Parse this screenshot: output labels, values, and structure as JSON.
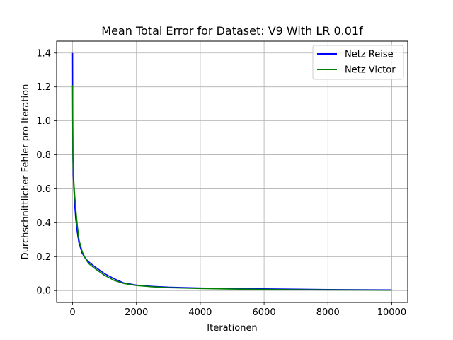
{
  "chart_data": {
    "type": "line",
    "title": "Mean Total Error for Dataset: V9 With LR 0.01f",
    "xlabel": "Iterationen",
    "ylabel": "Durchschnittlicher Fehler pro Iteration",
    "xlim": [
      -500,
      10500
    ],
    "ylim": [
      -0.07,
      1.47
    ],
    "xticks": [
      0,
      2000,
      4000,
      6000,
      8000,
      10000
    ],
    "xtick_labels": [
      "0",
      "2000",
      "4000",
      "6000",
      "8000",
      "10000"
    ],
    "yticks": [
      0.0,
      0.2,
      0.4,
      0.6,
      0.8,
      1.0,
      1.2,
      1.4
    ],
    "ytick_labels": [
      "0.0",
      "0.2",
      "0.4",
      "0.6",
      "0.8",
      "1.0",
      "1.2",
      "1.4"
    ],
    "grid": true,
    "legend_position": "top-right",
    "series": [
      {
        "name": "Netz Reise",
        "color": "#0000ff",
        "x": [
          0,
          5,
          10,
          20,
          40,
          60,
          100,
          150,
          200,
          300,
          400,
          500,
          700,
          1000,
          1300,
          1600,
          2000,
          2500,
          3000,
          4000,
          5000,
          6000,
          7000,
          8000,
          9000,
          10000
        ],
        "y": [
          1.4,
          1.0,
          0.8,
          0.68,
          0.6,
          0.52,
          0.42,
          0.34,
          0.28,
          0.22,
          0.19,
          0.17,
          0.14,
          0.1,
          0.07,
          0.045,
          0.032,
          0.025,
          0.02,
          0.015,
          0.012,
          0.01,
          0.008,
          0.006,
          0.005,
          0.004
        ]
      },
      {
        "name": "Netz Victor",
        "color": "#008000",
        "x": [
          0,
          5,
          10,
          20,
          40,
          60,
          100,
          150,
          200,
          300,
          400,
          500,
          700,
          1000,
          1300,
          1600,
          2000,
          2500,
          3000,
          4000,
          5000,
          6000,
          7000,
          8000,
          9000,
          10000
        ],
        "y": [
          1.21,
          0.95,
          0.8,
          0.72,
          0.64,
          0.58,
          0.48,
          0.38,
          0.3,
          0.23,
          0.19,
          0.16,
          0.13,
          0.09,
          0.06,
          0.042,
          0.03,
          0.022,
          0.017,
          0.012,
          0.009,
          0.007,
          0.005,
          0.004,
          0.003,
          0.002
        ]
      }
    ]
  }
}
